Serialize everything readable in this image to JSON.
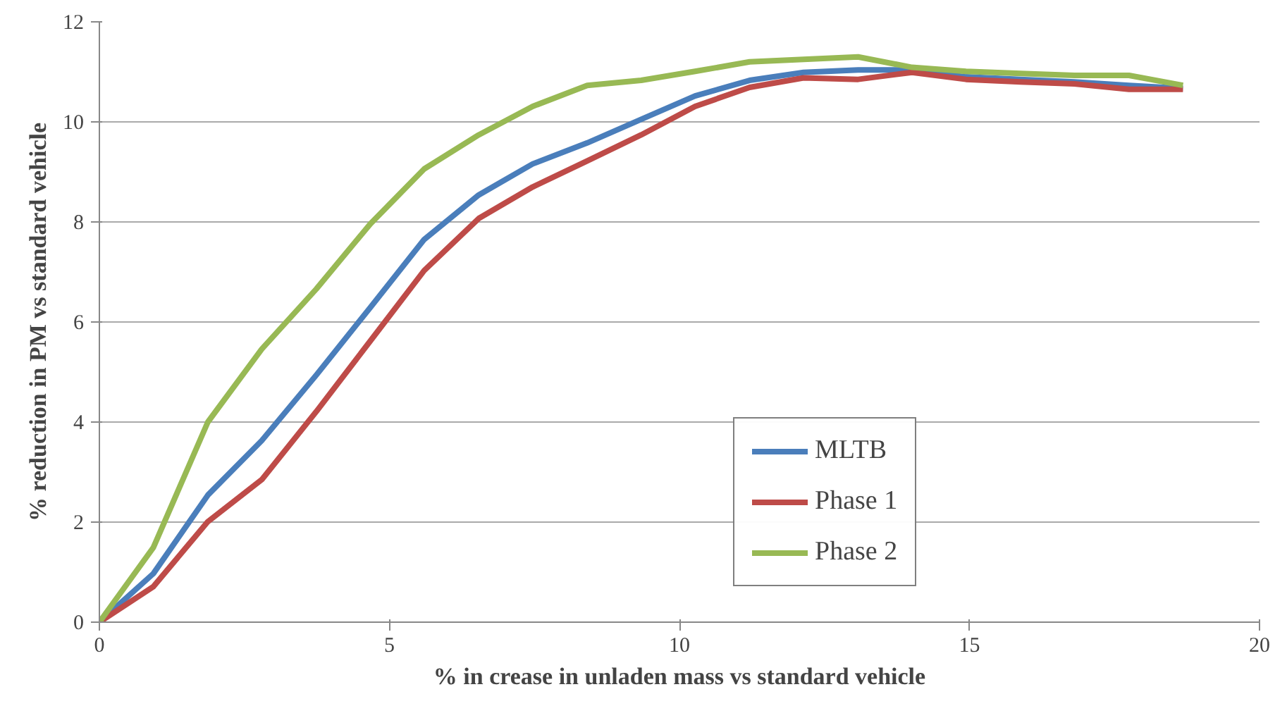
{
  "chart_data": {
    "type": "line",
    "xlabel": "% in crease in unladen mass vs standard vehicle",
    "ylabel": "% reduction in PM vs standard vehicle",
    "x": [
      0,
      0.93,
      1.87,
      2.8,
      3.74,
      4.67,
      5.6,
      6.54,
      7.47,
      8.41,
      9.34,
      10.27,
      11.21,
      12.14,
      13.08,
      14.01,
      14.94,
      15.88,
      16.81,
      17.75,
      18.68
    ],
    "series": [
      {
        "name": "MLTB",
        "color": "#4a7ebb",
        "values": [
          0,
          0.97,
          2.54,
          3.63,
          4.94,
          6.29,
          7.65,
          8.54,
          9.16,
          9.58,
          10.05,
          10.52,
          10.83,
          10.99,
          11.04,
          11.04,
          10.9,
          10.85,
          10.8,
          10.73,
          10.67
        ]
      },
      {
        "name": "Phase 1",
        "color": "#be4b48",
        "values": [
          0,
          0.71,
          2.01,
          2.85,
          4.21,
          5.62,
          7.03,
          8.07,
          8.7,
          9.22,
          9.74,
          10.31,
          10.69,
          10.88,
          10.85,
          10.99,
          10.85,
          10.8,
          10.76,
          10.65,
          10.65
        ]
      },
      {
        "name": "Phase 2",
        "color": "#98b954",
        "values": [
          0,
          1.49,
          4.0,
          5.46,
          6.66,
          7.96,
          9.06,
          9.74,
          10.31,
          10.73,
          10.83,
          11.01,
          11.2,
          11.25,
          11.3,
          11.09,
          11.01,
          10.97,
          10.93,
          10.93,
          10.73
        ]
      }
    ],
    "xlim": [
      0,
      20
    ],
    "xticks": [
      0,
      5,
      10,
      15,
      20
    ],
    "ylim": [
      0,
      12
    ],
    "yticks": [
      0,
      2,
      4,
      6,
      8,
      10,
      12
    ],
    "grid": "y",
    "legend": "right",
    "marker": "none",
    "line_style": "solid"
  }
}
